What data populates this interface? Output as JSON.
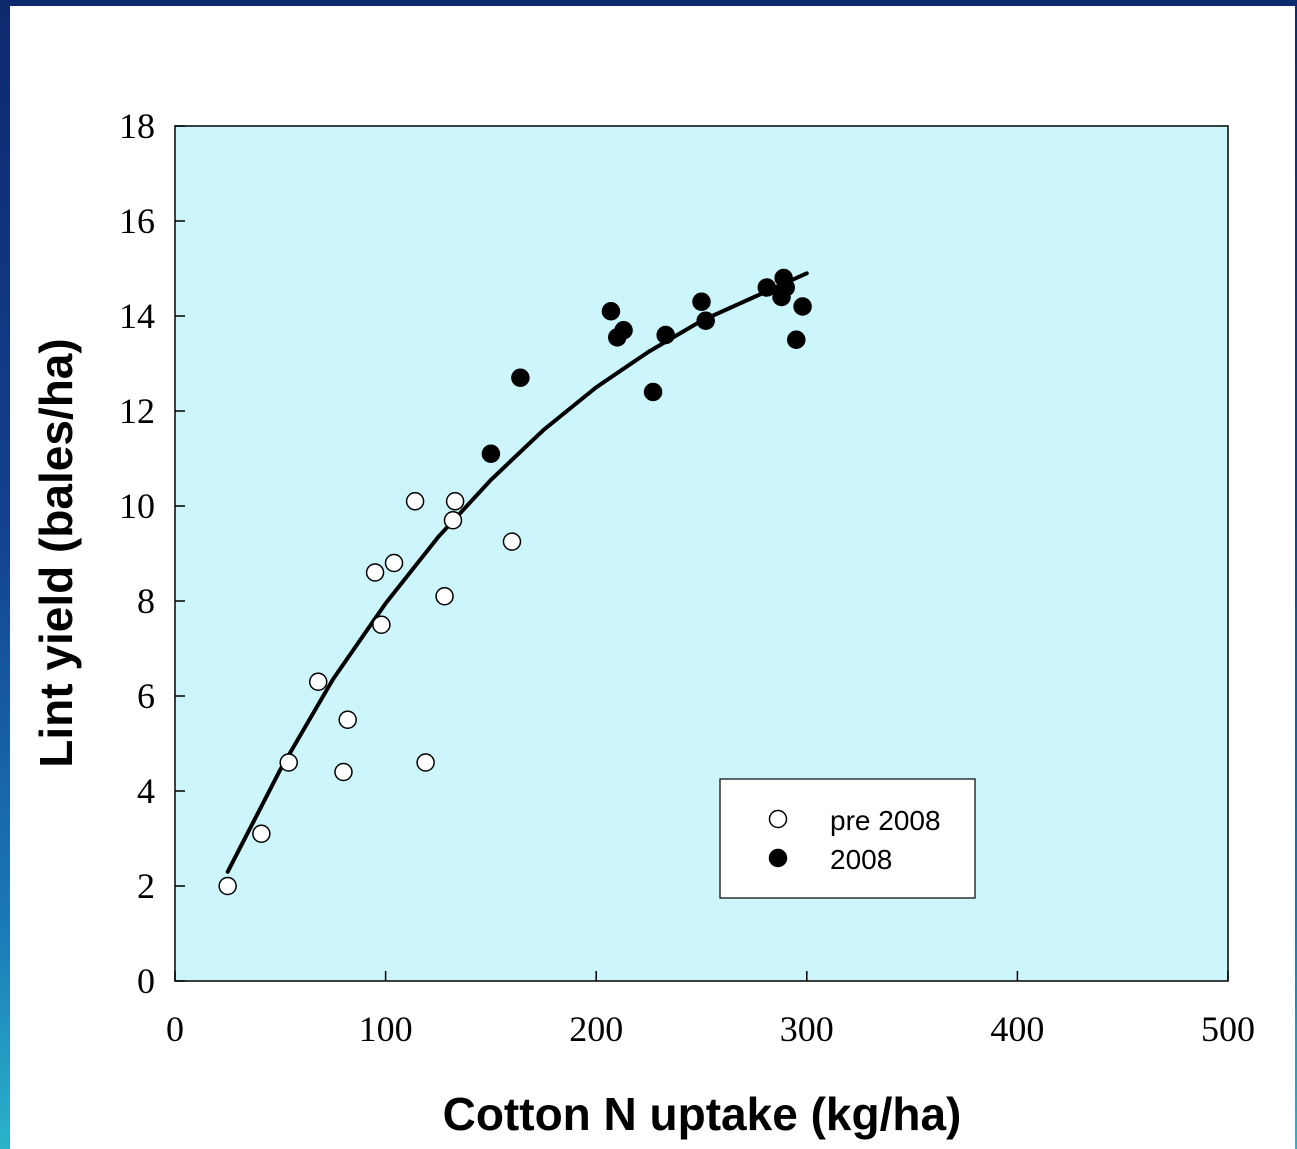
{
  "chart_data": {
    "type": "scatter",
    "xlabel": "Cotton N uptake (kg/ha)",
    "ylabel": "Lint yield (bales/ha)",
    "xlim": [
      0,
      500
    ],
    "ylim": [
      0,
      18
    ],
    "xticks": [
      0,
      100,
      200,
      300,
      400,
      500
    ],
    "yticks": [
      0,
      2,
      4,
      6,
      8,
      10,
      12,
      14,
      16,
      18
    ],
    "grid": false,
    "legend_position": "bottom-right",
    "plot_background": "#ccf6fb",
    "series": [
      {
        "name": "pre 2008",
        "marker": "open-circle",
        "color": "#000000",
        "points": [
          [
            25,
            2.0
          ],
          [
            41,
            3.1
          ],
          [
            54,
            4.6
          ],
          [
            68,
            6.3
          ],
          [
            80,
            4.4
          ],
          [
            82,
            5.5
          ],
          [
            95,
            8.6
          ],
          [
            98,
            7.5
          ],
          [
            104,
            8.8
          ],
          [
            114,
            10.1
          ],
          [
            119,
            4.6
          ],
          [
            128,
            8.1
          ],
          [
            132,
            9.7
          ],
          [
            133,
            10.1
          ],
          [
            160,
            9.25
          ]
        ]
      },
      {
        "name": "2008",
        "marker": "filled-circle",
        "color": "#000000",
        "points": [
          [
            150,
            11.1
          ],
          [
            164,
            12.7
          ],
          [
            207,
            14.1
          ],
          [
            210,
            13.55
          ],
          [
            213,
            13.7
          ],
          [
            227,
            12.4
          ],
          [
            233,
            13.6
          ],
          [
            250,
            14.3
          ],
          [
            252,
            13.9
          ],
          [
            281,
            14.6
          ],
          [
            288,
            14.4
          ],
          [
            289,
            14.8
          ],
          [
            290,
            14.6
          ],
          [
            295,
            13.5
          ],
          [
            298,
            14.2
          ]
        ]
      }
    ],
    "fit_curve": {
      "type": "quadratic",
      "x_range": [
        25,
        300
      ],
      "points": [
        [
          25,
          2.3
        ],
        [
          50,
          4.45
        ],
        [
          75,
          6.35
        ],
        [
          100,
          7.95
        ],
        [
          125,
          9.35
        ],
        [
          150,
          10.55
        ],
        [
          175,
          11.6
        ],
        [
          200,
          12.5
        ],
        [
          225,
          13.25
        ],
        [
          250,
          13.9
        ],
        [
          275,
          14.4
        ],
        [
          300,
          14.9
        ]
      ]
    }
  }
}
